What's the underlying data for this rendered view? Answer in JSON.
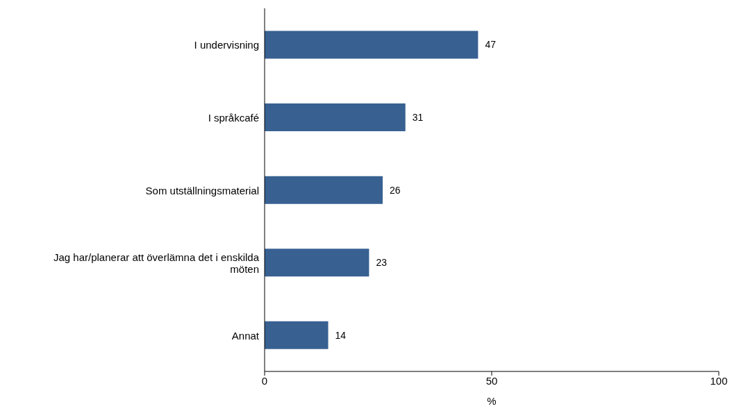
{
  "chart_data": {
    "type": "bar",
    "orientation": "horizontal",
    "categories": [
      "I undervisning",
      "I språkcafé",
      "Som utställningsmaterial",
      "Jag har/planerar att överlämna det i enskilda möten",
      "Annat"
    ],
    "values": [
      47,
      31,
      26,
      23,
      14
    ],
    "color": "#386192",
    "data_labels": true,
    "xlabel": "%",
    "xlim": [
      0,
      100
    ],
    "xticks": [
      0,
      50,
      100
    ],
    "grid": false
  }
}
